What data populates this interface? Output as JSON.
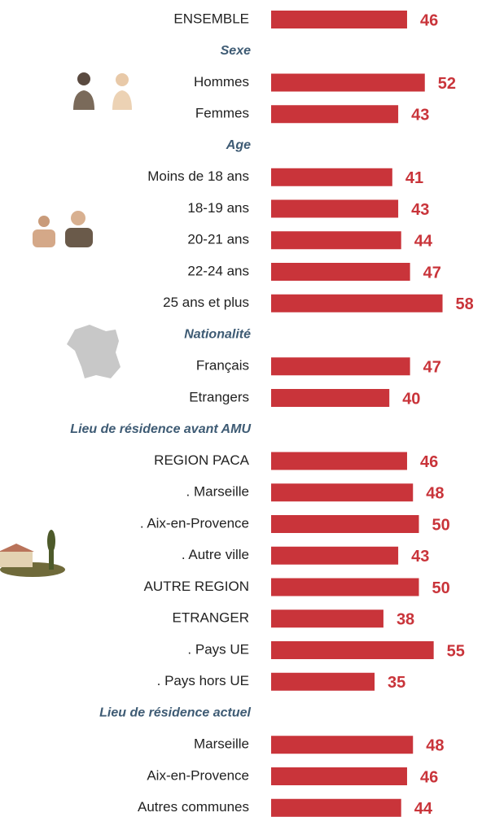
{
  "chart_data": {
    "type": "bar",
    "color": "#c9343a",
    "groups": [
      {
        "categories": [
          "ENSEMBLE"
        ],
        "values": [
          46
        ]
      },
      {
        "title": "Sexe",
        "categories": [
          "Hommes",
          "Femmes"
        ],
        "values": [
          52,
          43
        ]
      },
      {
        "title": "Age",
        "categories": [
          "Moins de 18 ans",
          "18-19 ans",
          "20-21 ans",
          "22-24 ans",
          "25 ans et plus"
        ],
        "values": [
          41,
          43,
          44,
          47,
          58
        ]
      },
      {
        "title": "Nationalité",
        "categories": [
          "Français",
          "Etrangers"
        ],
        "values": [
          47,
          40
        ]
      },
      {
        "title": "Lieu de résidence avant AMU",
        "categories": [
          "REGION PACA",
          ". Marseille",
          ". Aix-en-Provence",
          ". Autre ville",
          "AUTRE REGION",
          "ETRANGER",
          ". Pays UE",
          ". Pays hors UE"
        ],
        "values": [
          46,
          48,
          50,
          43,
          50,
          38,
          55,
          35
        ]
      },
      {
        "title": "Lieu de résidence actuel",
        "categories": [
          "Marseille",
          "Aix-en-Provence",
          "Autres communes"
        ],
        "values": [
          48,
          46,
          44
        ]
      }
    ]
  }
}
